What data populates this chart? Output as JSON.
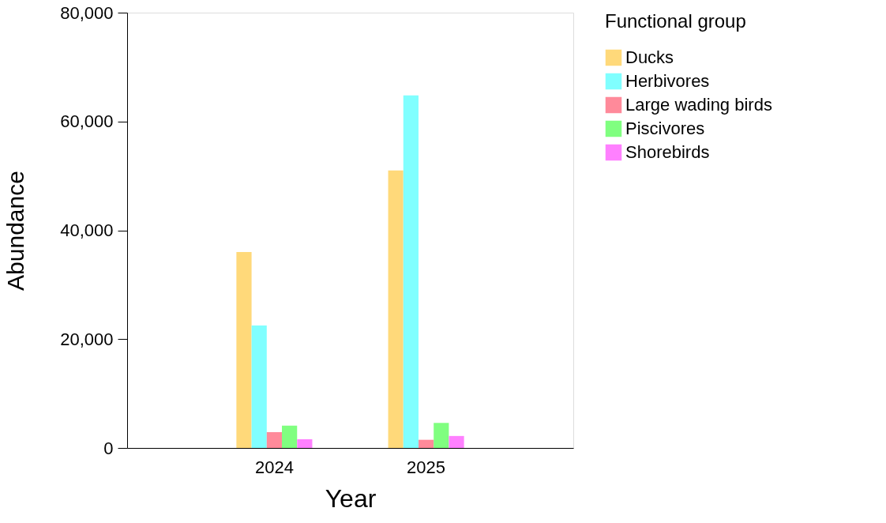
{
  "chart_data": {
    "type": "bar",
    "xlabel": "Year",
    "ylabel": "Abundance",
    "legend_title": "Functional group",
    "categories": [
      "2024",
      "2025"
    ],
    "series": [
      {
        "name": "Ducks",
        "color": "#ffd97a",
        "values": [
          36000,
          51000
        ]
      },
      {
        "name": "Herbivores",
        "color": "#80ffff",
        "values": [
          22500,
          64800
        ]
      },
      {
        "name": "Large wading birds",
        "color": "#ff8a9a",
        "values": [
          2900,
          1500
        ]
      },
      {
        "name": "Piscivores",
        "color": "#80ff80",
        "values": [
          4100,
          4600
        ]
      },
      {
        "name": "Shorebirds",
        "color": "#ff80ff",
        "values": [
          1600,
          2200
        ]
      }
    ],
    "ylim": [
      0,
      80000
    ],
    "yticks": [
      {
        "value": 0,
        "label": "0"
      },
      {
        "value": 20000,
        "label": "20,000"
      },
      {
        "value": 40000,
        "label": "40,000"
      },
      {
        "value": 60000,
        "label": "60,000"
      },
      {
        "value": 80000,
        "label": "80,000"
      }
    ],
    "grid": false,
    "legend": "right"
  }
}
